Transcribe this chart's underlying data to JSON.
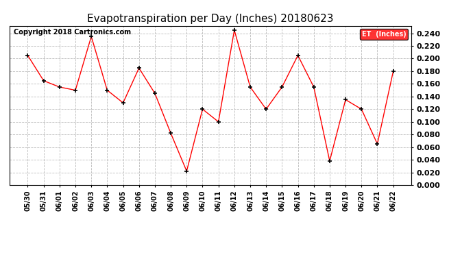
{
  "title": "Evapotranspiration per Day (Inches) 20180623",
  "copyright": "Copyright 2018 Cartronics.com",
  "legend_label": "ET  (Inches)",
  "dates": [
    "05/30",
    "05/31",
    "06/01",
    "06/02",
    "06/03",
    "06/04",
    "06/05",
    "06/06",
    "06/07",
    "06/08",
    "06/09",
    "06/10",
    "06/11",
    "06/12",
    "06/13",
    "06/14",
    "06/15",
    "06/16",
    "06/17",
    "06/18",
    "06/19",
    "06/20",
    "06/21",
    "06/22"
  ],
  "values": [
    0.205,
    0.165,
    0.155,
    0.15,
    0.235,
    0.15,
    0.13,
    0.185,
    0.145,
    0.082,
    0.022,
    0.12,
    0.1,
    0.245,
    0.155,
    0.12,
    0.155,
    0.205,
    0.155,
    0.038,
    0.135,
    0.12,
    0.065,
    0.18
  ],
  "line_color": "red",
  "marker_color": "black",
  "ylim": [
    0.0,
    0.252
  ],
  "yticks": [
    0.0,
    0.02,
    0.04,
    0.06,
    0.08,
    0.1,
    0.12,
    0.14,
    0.16,
    0.18,
    0.2,
    0.22,
    0.24
  ],
  "background_color": "#ffffff",
  "grid_color": "#bbbbbb",
  "title_fontsize": 11,
  "copyright_fontsize": 7,
  "tick_fontsize": 7,
  "legend_bg": "red",
  "legend_fg": "white"
}
